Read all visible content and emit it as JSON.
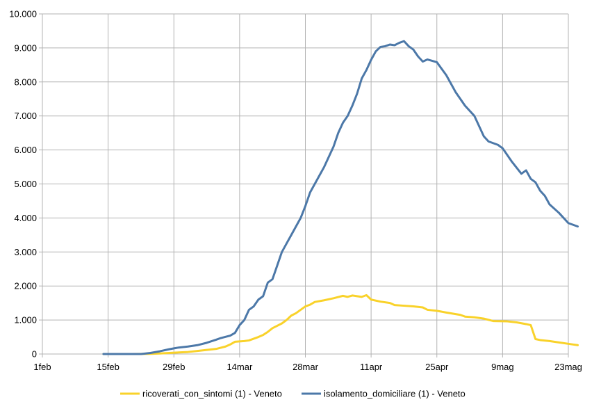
{
  "chart_data": {
    "type": "line",
    "title": "",
    "xlabel": "",
    "ylabel": "",
    "x_axis": {
      "type": "date",
      "ticks": [
        "2020-02-01",
        "2020-02-15",
        "2020-02-29",
        "2020-03-14",
        "2020-03-28",
        "2020-04-11",
        "2020-04-25",
        "2020-05-09",
        "2020-05-23"
      ],
      "tick_labels": [
        "1feb",
        "15feb",
        "29feb",
        "14mar",
        "28mar",
        "11apr",
        "25apr",
        "9mag",
        "23mag"
      ],
      "range": [
        "2020-02-01",
        "2020-05-23"
      ]
    },
    "y_axis": {
      "ticks": [
        0,
        1000,
        2000,
        3000,
        4000,
        5000,
        6000,
        7000,
        8000,
        9000,
        10000
      ],
      "tick_labels": [
        "0",
        "1.000",
        "2.000",
        "3.000",
        "4.000",
        "5.000",
        "6.000",
        "7.000",
        "8.000",
        "9.000",
        "10.000"
      ],
      "range": [
        0,
        10000
      ]
    },
    "grid": true,
    "legend_position": "bottom",
    "series": [
      {
        "name": "ricoverati_con_sintomi (1) - Veneto",
        "color": "#f9d22a",
        "points": [
          [
            "2020-02-14",
            0
          ],
          [
            "2020-02-20",
            0
          ],
          [
            "2020-02-24",
            5
          ],
          [
            "2020-02-26",
            15
          ],
          [
            "2020-02-28",
            30
          ],
          [
            "2020-03-01",
            45
          ],
          [
            "2020-03-03",
            60
          ],
          [
            "2020-03-05",
            90
          ],
          [
            "2020-03-07",
            120
          ],
          [
            "2020-03-09",
            150
          ],
          [
            "2020-03-11",
            220
          ],
          [
            "2020-03-12",
            280
          ],
          [
            "2020-03-13",
            360
          ],
          [
            "2020-03-15",
            380
          ],
          [
            "2020-03-16",
            400
          ],
          [
            "2020-03-18",
            500
          ],
          [
            "2020-03-19",
            560
          ],
          [
            "2020-03-20",
            650
          ],
          [
            "2020-03-21",
            760
          ],
          [
            "2020-03-22",
            830
          ],
          [
            "2020-03-23",
            900
          ],
          [
            "2020-03-24",
            1000
          ],
          [
            "2020-03-25",
            1130
          ],
          [
            "2020-03-26",
            1200
          ],
          [
            "2020-03-27",
            1300
          ],
          [
            "2020-03-28",
            1400
          ],
          [
            "2020-03-29",
            1450
          ],
          [
            "2020-03-30",
            1530
          ],
          [
            "2020-04-01",
            1580
          ],
          [
            "2020-04-03",
            1640
          ],
          [
            "2020-04-05",
            1710
          ],
          [
            "2020-04-06",
            1680
          ],
          [
            "2020-04-07",
            1720
          ],
          [
            "2020-04-08",
            1700
          ],
          [
            "2020-04-09",
            1680
          ],
          [
            "2020-04-10",
            1730
          ],
          [
            "2020-04-11",
            1600
          ],
          [
            "2020-04-13",
            1540
          ],
          [
            "2020-04-15",
            1500
          ],
          [
            "2020-04-16",
            1440
          ],
          [
            "2020-04-18",
            1420
          ],
          [
            "2020-04-20",
            1400
          ],
          [
            "2020-04-22",
            1370
          ],
          [
            "2020-04-23",
            1300
          ],
          [
            "2020-04-25",
            1270
          ],
          [
            "2020-04-27",
            1220
          ],
          [
            "2020-04-30",
            1150
          ],
          [
            "2020-05-01",
            1100
          ],
          [
            "2020-05-03",
            1080
          ],
          [
            "2020-05-05",
            1040
          ],
          [
            "2020-05-07",
            970
          ],
          [
            "2020-05-10",
            960
          ],
          [
            "2020-05-12",
            930
          ],
          [
            "2020-05-14",
            880
          ],
          [
            "2020-05-15",
            850
          ],
          [
            "2020-05-16",
            440
          ],
          [
            "2020-05-17",
            410
          ],
          [
            "2020-05-19",
            380
          ],
          [
            "2020-05-21",
            340
          ],
          [
            "2020-05-24",
            280
          ],
          [
            "2020-05-25",
            260
          ]
        ]
      },
      {
        "name": "isolamento_domiciliare (1) - Veneto",
        "color": "#4c78a8",
        "points": [
          [
            "2020-02-14",
            0
          ],
          [
            "2020-02-22",
            0
          ],
          [
            "2020-02-24",
            30
          ],
          [
            "2020-02-26",
            80
          ],
          [
            "2020-02-28",
            140
          ],
          [
            "2020-03-01",
            190
          ],
          [
            "2020-03-03",
            220
          ],
          [
            "2020-03-05",
            260
          ],
          [
            "2020-03-07",
            330
          ],
          [
            "2020-03-09",
            420
          ],
          [
            "2020-03-10",
            470
          ],
          [
            "2020-03-12",
            540
          ],
          [
            "2020-03-13",
            620
          ],
          [
            "2020-03-14",
            850
          ],
          [
            "2020-03-15",
            1000
          ],
          [
            "2020-03-16",
            1300
          ],
          [
            "2020-03-17",
            1400
          ],
          [
            "2020-03-18",
            1600
          ],
          [
            "2020-03-19",
            1700
          ],
          [
            "2020-03-20",
            2100
          ],
          [
            "2020-03-21",
            2200
          ],
          [
            "2020-03-22",
            2600
          ],
          [
            "2020-03-23",
            3000
          ],
          [
            "2020-03-24",
            3250
          ],
          [
            "2020-03-25",
            3500
          ],
          [
            "2020-03-26",
            3750
          ],
          [
            "2020-03-27",
            4000
          ],
          [
            "2020-03-28",
            4350
          ],
          [
            "2020-03-29",
            4750
          ],
          [
            "2020-03-30",
            5000
          ],
          [
            "2020-03-31",
            5250
          ],
          [
            "2020-04-01",
            5500
          ],
          [
            "2020-04-02",
            5800
          ],
          [
            "2020-04-03",
            6100
          ],
          [
            "2020-04-04",
            6500
          ],
          [
            "2020-04-05",
            6800
          ],
          [
            "2020-04-06",
            7000
          ],
          [
            "2020-04-07",
            7300
          ],
          [
            "2020-04-08",
            7650
          ],
          [
            "2020-04-09",
            8100
          ],
          [
            "2020-04-10",
            8350
          ],
          [
            "2020-04-11",
            8650
          ],
          [
            "2020-04-12",
            8900
          ],
          [
            "2020-04-13",
            9030
          ],
          [
            "2020-04-14",
            9050
          ],
          [
            "2020-04-15",
            9100
          ],
          [
            "2020-04-16",
            9080
          ],
          [
            "2020-04-17",
            9150
          ],
          [
            "2020-04-18",
            9200
          ],
          [
            "2020-04-19",
            9050
          ],
          [
            "2020-04-20",
            8950
          ],
          [
            "2020-04-21",
            8750
          ],
          [
            "2020-04-22",
            8600
          ],
          [
            "2020-04-23",
            8660
          ],
          [
            "2020-04-24",
            8620
          ],
          [
            "2020-04-25",
            8580
          ],
          [
            "2020-04-27",
            8200
          ],
          [
            "2020-04-29",
            7700
          ],
          [
            "2020-05-01",
            7300
          ],
          [
            "2020-05-03",
            7000
          ],
          [
            "2020-05-05",
            6400
          ],
          [
            "2020-05-06",
            6250
          ],
          [
            "2020-05-08",
            6150
          ],
          [
            "2020-05-09",
            6050
          ],
          [
            "2020-05-11",
            5650
          ],
          [
            "2020-05-13",
            5300
          ],
          [
            "2020-05-14",
            5400
          ],
          [
            "2020-05-15",
            5150
          ],
          [
            "2020-05-16",
            5050
          ],
          [
            "2020-05-17",
            4800
          ],
          [
            "2020-05-18",
            4650
          ],
          [
            "2020-05-19",
            4400
          ],
          [
            "2020-05-21",
            4150
          ],
          [
            "2020-05-23",
            3850
          ],
          [
            "2020-05-25",
            3750
          ]
        ]
      }
    ]
  }
}
